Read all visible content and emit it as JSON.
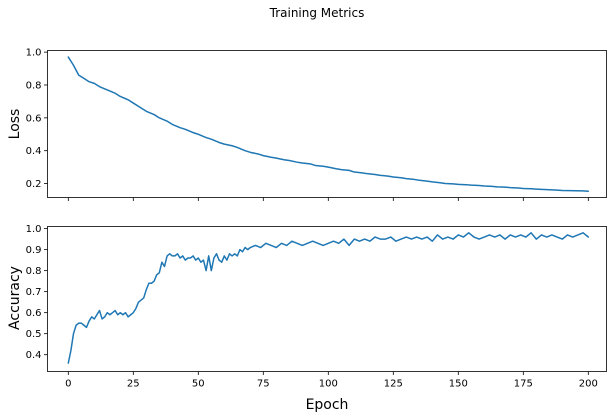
{
  "figure": {
    "title": "Training Metrics",
    "color": "#1f77b4"
  },
  "chart_data": [
    {
      "type": "line",
      "name": "loss-panel",
      "title": "",
      "xlabel": "",
      "ylabel": "Loss",
      "xlim": [
        -8,
        207
      ],
      "ylim": [
        0.115,
        1.01
      ],
      "x_ticks": [
        0,
        25,
        50,
        75,
        100,
        125,
        150,
        175,
        200
      ],
      "x_tick_labels_visible": false,
      "y_ticks": [
        0.2,
        0.4,
        0.6,
        0.8,
        1.0
      ],
      "y_tick_labels": [
        "0.2",
        "0.4",
        "0.6",
        "0.8",
        "1.0"
      ],
      "grid": false,
      "series": [
        {
          "x": [
            0,
            2,
            4,
            6,
            8,
            10,
            12,
            15,
            18,
            20,
            23,
            25,
            28,
            30,
            33,
            35,
            38,
            40,
            43,
            45,
            48,
            50,
            53,
            55,
            58,
            60,
            63,
            65,
            68,
            70,
            73,
            75,
            78,
            80,
            83,
            85,
            88,
            90,
            93,
            95,
            98,
            100,
            103,
            105,
            108,
            110,
            113,
            115,
            118,
            120,
            123,
            125,
            128,
            130,
            133,
            135,
            138,
            140,
            143,
            145,
            148,
            150,
            153,
            155,
            158,
            160,
            163,
            165,
            168,
            170,
            173,
            175,
            178,
            180,
            183,
            185,
            188,
            190,
            193,
            195,
            198,
            200
          ],
          "y": [
            0.97,
            0.92,
            0.86,
            0.84,
            0.82,
            0.81,
            0.79,
            0.77,
            0.75,
            0.73,
            0.71,
            0.69,
            0.66,
            0.64,
            0.62,
            0.6,
            0.58,
            0.56,
            0.54,
            0.53,
            0.51,
            0.5,
            0.48,
            0.47,
            0.45,
            0.44,
            0.43,
            0.42,
            0.4,
            0.39,
            0.38,
            0.37,
            0.36,
            0.355,
            0.345,
            0.34,
            0.33,
            0.325,
            0.32,
            0.31,
            0.305,
            0.3,
            0.29,
            0.285,
            0.28,
            0.27,
            0.265,
            0.26,
            0.255,
            0.25,
            0.245,
            0.24,
            0.235,
            0.23,
            0.225,
            0.22,
            0.215,
            0.21,
            0.205,
            0.2,
            0.198,
            0.195,
            0.193,
            0.19,
            0.188,
            0.185,
            0.183,
            0.18,
            0.178,
            0.175,
            0.173,
            0.17,
            0.168,
            0.166,
            0.164,
            0.162,
            0.16,
            0.158,
            0.157,
            0.156,
            0.155,
            0.153
          ]
        }
      ]
    },
    {
      "type": "line",
      "name": "accuracy-panel",
      "title": "",
      "xlabel": "Epoch",
      "ylabel": "Accuracy",
      "xlim": [
        -8,
        207
      ],
      "ylim": [
        0.32,
        1.01
      ],
      "x_ticks": [
        0,
        25,
        50,
        75,
        100,
        125,
        150,
        175,
        200
      ],
      "x_tick_labels": [
        "0",
        "25",
        "50",
        "75",
        "100",
        "125",
        "150",
        "175",
        "200"
      ],
      "y_ticks": [
        0.4,
        0.5,
        0.6,
        0.7,
        0.8,
        0.9,
        1.0
      ],
      "y_tick_labels": [
        "0.4",
        "0.5",
        "0.6",
        "0.7",
        "0.8",
        "0.9",
        "1.0"
      ],
      "grid": false,
      "series": [
        {
          "x": [
            0,
            1,
            2,
            3,
            4,
            5,
            6,
            7,
            8,
            9,
            10,
            11,
            12,
            13,
            14,
            15,
            16,
            17,
            18,
            19,
            20,
            21,
            22,
            23,
            24,
            25,
            26,
            27,
            28,
            29,
            30,
            31,
            32,
            33,
            34,
            35,
            36,
            37,
            38,
            39,
            40,
            41,
            42,
            43,
            44,
            45,
            46,
            47,
            48,
            49,
            50,
            51,
            52,
            53,
            54,
            55,
            56,
            57,
            58,
            59,
            60,
            61,
            62,
            63,
            64,
            65,
            66,
            67,
            68,
            69,
            70,
            72,
            74,
            76,
            78,
            80,
            82,
            84,
            86,
            88,
            90,
            92,
            94,
            96,
            98,
            100,
            102,
            104,
            106,
            108,
            110,
            112,
            114,
            116,
            118,
            120,
            122,
            124,
            126,
            128,
            130,
            132,
            134,
            136,
            138,
            140,
            142,
            144,
            146,
            148,
            150,
            152,
            154,
            156,
            158,
            160,
            162,
            164,
            166,
            168,
            170,
            172,
            174,
            176,
            178,
            180,
            182,
            184,
            186,
            188,
            190,
            192,
            194,
            196,
            198,
            200
          ],
          "y": [
            0.36,
            0.42,
            0.5,
            0.54,
            0.55,
            0.55,
            0.54,
            0.53,
            0.56,
            0.58,
            0.57,
            0.59,
            0.61,
            0.57,
            0.58,
            0.6,
            0.59,
            0.6,
            0.61,
            0.59,
            0.6,
            0.59,
            0.6,
            0.58,
            0.59,
            0.6,
            0.62,
            0.65,
            0.66,
            0.67,
            0.71,
            0.74,
            0.74,
            0.75,
            0.78,
            0.79,
            0.84,
            0.82,
            0.87,
            0.88,
            0.87,
            0.87,
            0.88,
            0.86,
            0.87,
            0.85,
            0.86,
            0.86,
            0.87,
            0.85,
            0.86,
            0.84,
            0.85,
            0.8,
            0.87,
            0.8,
            0.86,
            0.88,
            0.85,
            0.84,
            0.87,
            0.85,
            0.88,
            0.87,
            0.88,
            0.87,
            0.9,
            0.89,
            0.91,
            0.9,
            0.91,
            0.92,
            0.91,
            0.93,
            0.92,
            0.91,
            0.93,
            0.92,
            0.94,
            0.93,
            0.92,
            0.93,
            0.94,
            0.93,
            0.92,
            0.93,
            0.94,
            0.93,
            0.95,
            0.92,
            0.95,
            0.94,
            0.95,
            0.94,
            0.96,
            0.95,
            0.95,
            0.96,
            0.94,
            0.95,
            0.96,
            0.95,
            0.96,
            0.95,
            0.96,
            0.94,
            0.97,
            0.95,
            0.96,
            0.95,
            0.97,
            0.96,
            0.98,
            0.96,
            0.95,
            0.96,
            0.97,
            0.96,
            0.97,
            0.95,
            0.97,
            0.96,
            0.97,
            0.96,
            0.98,
            0.95,
            0.97,
            0.96,
            0.97,
            0.96,
            0.95,
            0.97,
            0.96,
            0.97,
            0.98,
            0.96
          ]
        }
      ]
    }
  ]
}
